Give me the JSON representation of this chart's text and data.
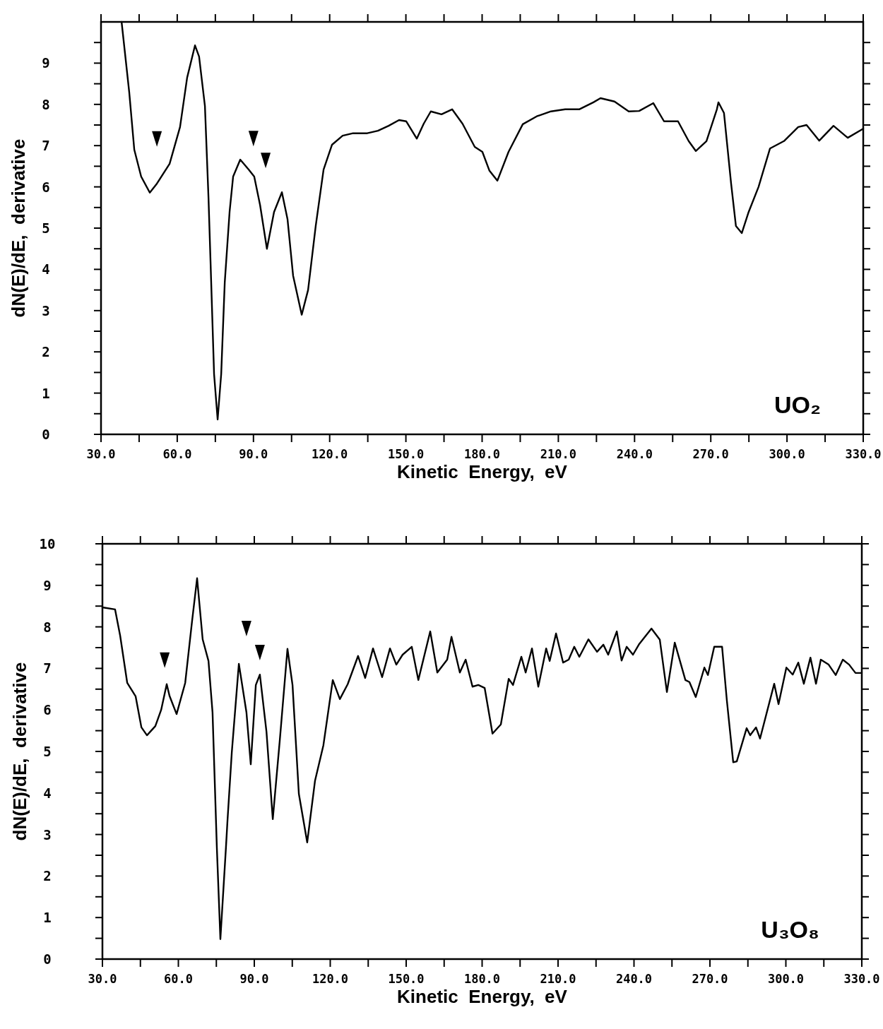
{
  "chart_data": [
    {
      "type": "line",
      "xlabel": "Kinetic  Energy,  eV",
      "ylabel": "dN(E)/dE,  derivative",
      "annotations": [
        "UO₂"
      ],
      "xlim": [
        30,
        330
      ],
      "xticks": [
        {
          "value": 30,
          "label": "30.0"
        },
        {
          "value": 45,
          "label": null
        },
        {
          "value": 60,
          "label": "60.0"
        },
        {
          "value": 75,
          "label": null
        },
        {
          "value": 90,
          "label": "90.0"
        },
        {
          "value": 105,
          "label": null
        },
        {
          "value": 120,
          "label": "120.0"
        },
        {
          "value": 135,
          "label": null
        },
        {
          "value": 150,
          "label": "150.0"
        },
        {
          "value": 165,
          "label": null
        },
        {
          "value": 180,
          "label": "180.0"
        },
        {
          "value": 195,
          "label": null
        },
        {
          "value": 210,
          "label": "210.0"
        },
        {
          "value": 225,
          "label": null
        },
        {
          "value": 240,
          "label": "240.0"
        },
        {
          "value": 255,
          "label": null
        },
        {
          "value": 270,
          "label": "270.0"
        },
        {
          "value": 285,
          "label": null
        },
        {
          "value": 300,
          "label": "300.0"
        },
        {
          "value": 315,
          "label": null
        },
        {
          "value": 330,
          "label": "330.0"
        }
      ],
      "ylim": [
        0,
        10
      ],
      "yticks": [
        0,
        {
          "value": 0.5,
          "label": null
        },
        1,
        {
          "value": 1.5,
          "label": null
        },
        2,
        {
          "value": 2.5,
          "label": null
        },
        3,
        {
          "value": 3.5,
          "label": null
        },
        4,
        {
          "value": 4.5,
          "label": null
        },
        5,
        {
          "value": 5.5,
          "label": null
        },
        6,
        {
          "value": 6.5,
          "label": null
        },
        7,
        {
          "value": 7.5,
          "label": null
        },
        8,
        {
          "value": 8.5,
          "label": null
        },
        9,
        {
          "value": 9.5,
          "label": null
        }
      ],
      "series": [
        {
          "color": "#000000",
          "x": [
            38.1,
            41.1,
            43.1,
            45.8,
            49.2,
            52.0,
            57.0,
            61.1,
            63.9,
            67.0,
            68.6,
            70.9,
            72.3,
            73.1,
            74.5,
            75.9,
            77.3,
            78.7,
            80.6,
            82.0,
            84.8,
            88.1,
            90.3,
            92.6,
            95.3,
            98.1,
            101.2,
            103.4,
            105.6,
            109.0,
            111.5,
            114.5,
            117.6,
            120.9,
            125.1,
            129.2,
            134.8,
            139.0,
            143.2,
            147.3,
            150.1,
            154.3,
            157.0,
            159.8,
            164.0,
            168.2,
            172.3,
            177.1,
            180.1,
            182.9,
            186.0,
            190.4,
            196.0,
            201.5,
            207.1,
            212.7,
            218.2,
            223.8,
            226.6,
            232.1,
            237.7,
            241.8,
            247.4,
            251.6,
            257.1,
            261.3,
            264.1,
            268.3,
            272.4,
            273.0,
            275.2,
            278.0,
            279.9,
            282.2,
            284.9,
            288.8,
            293.3,
            298.8,
            304.4,
            307.7,
            312.7,
            318.3,
            323.9,
            330
          ],
          "values": [
            10.0,
            8.3,
            6.9,
            6.25,
            5.86,
            6.08,
            6.56,
            7.45,
            8.65,
            9.43,
            9.16,
            7.96,
            5.74,
            4.2,
            1.46,
            0.36,
            1.46,
            3.68,
            5.39,
            6.25,
            6.66,
            6.42,
            6.25,
            5.56,
            4.5,
            5.39,
            5.87,
            5.22,
            3.85,
            2.9,
            3.5,
            5.05,
            6.42,
            7.02,
            7.24,
            7.3,
            7.3,
            7.36,
            7.48,
            7.62,
            7.59,
            7.17,
            7.53,
            7.83,
            7.76,
            7.88,
            7.53,
            6.97,
            6.85,
            6.39,
            6.15,
            6.85,
            7.52,
            7.71,
            7.83,
            7.88,
            7.88,
            8.05,
            8.15,
            8.07,
            7.83,
            7.84,
            8.03,
            7.59,
            7.59,
            7.11,
            6.87,
            7.11,
            7.88,
            8.05,
            7.79,
            6.08,
            5.05,
            4.88,
            5.39,
            6.0,
            6.93,
            7.11,
            7.45,
            7.5,
            7.12,
            7.48,
            7.19,
            7.41
          ]
        },
        {
          "type": "scatter",
          "color": "#000000",
          "marker": "triangle",
          "x": [
            52.0,
            90.0,
            94.8
          ],
          "values": [
            7.16,
            7.17,
            6.64
          ]
        }
      ]
    },
    {
      "type": "line",
      "xlabel": "Kinetic  Energy,  eV",
      "ylabel": "dN(E)/dE,  derivative",
      "annotations": [
        "U₃O₈"
      ],
      "xlim": [
        30,
        330
      ],
      "xticks": [
        {
          "value": 30,
          "label": "30.0"
        },
        {
          "value": 45,
          "label": null
        },
        {
          "value": 60,
          "label": "60.0"
        },
        {
          "value": 75,
          "label": null
        },
        {
          "value": 90,
          "label": "90.0"
        },
        {
          "value": 105,
          "label": null
        },
        {
          "value": 120,
          "label": "120.0"
        },
        {
          "value": 135,
          "label": null
        },
        {
          "value": 150,
          "label": "150.0"
        },
        {
          "value": 165,
          "label": null
        },
        {
          "value": 180,
          "label": "180.0"
        },
        {
          "value": 195,
          "label": null
        },
        {
          "value": 210,
          "label": "210.0"
        },
        {
          "value": 225,
          "label": null
        },
        {
          "value": 240,
          "label": "240.0"
        },
        {
          "value": 255,
          "label": null
        },
        {
          "value": 270,
          "label": "270.0"
        },
        {
          "value": 285,
          "label": null
        },
        {
          "value": 300,
          "label": "300.0"
        },
        {
          "value": 315,
          "label": null
        },
        {
          "value": 330,
          "label": "330.0"
        }
      ],
      "ylim": [
        0,
        10
      ],
      "yticks": [
        0,
        {
          "value": 0.5,
          "label": null
        },
        1,
        {
          "value": 1.5,
          "label": null
        },
        2,
        {
          "value": 2.5,
          "label": null
        },
        3,
        {
          "value": 3.5,
          "label": null
        },
        4,
        {
          "value": 4.5,
          "label": null
        },
        5,
        {
          "value": 5.5,
          "label": null
        },
        6,
        {
          "value": 6.5,
          "label": null
        },
        7,
        {
          "value": 7.5,
          "label": null
        },
        8,
        {
          "value": 8.5,
          "label": null
        },
        9,
        {
          "value": 9.5,
          "label": null
        },
        10
      ],
      "series": [
        {
          "color": "#000000",
          "x": [
            30.0,
            35.0,
            37.0,
            39.8,
            43.1,
            45.4,
            47.6,
            50.9,
            53.2,
            55.4,
            56.5,
            59.3,
            62.7,
            65.4,
            67.4,
            69.6,
            71.9,
            73.5,
            75.2,
            76.6,
            78.8,
            79.4,
            81.1,
            83.9,
            86.9,
            88.6,
            90.6,
            92.2,
            94.8,
            97.3,
            100.1,
            103.1,
            105.1,
            107.6,
            110.9,
            114.0,
            117.3,
            121.0,
            123.8,
            126.9,
            131.0,
            133.8,
            136.9,
            140.5,
            143.6,
            146.1,
            148.6,
            152.2,
            154.8,
            159.5,
            162.3,
            166.2,
            167.9,
            171.2,
            173.5,
            176.2,
            178.5,
            181.0,
            184.1,
            187.4,
            190.5,
            192.2,
            195.5,
            197.2,
            199.7,
            202.2,
            205.3,
            206.7,
            209.2,
            212.0,
            214.2,
            216.4,
            218.4,
            222.0,
            225.4,
            227.9,
            229.8,
            233.2,
            235.1,
            237.1,
            239.6,
            242.1,
            246.9,
            250.2,
            253.0,
            256.1,
            260.3,
            261.9,
            264.4,
            267.8,
            269.2,
            271.7,
            274.8,
            276.7,
            279.2,
            280.6,
            284.5,
            285.9,
            288.2,
            289.8,
            295.4,
            297.1,
            300.2,
            302.7,
            304.9,
            307.1,
            309.7,
            311.9,
            313.8,
            316.9,
            319.7,
            322.5,
            325.0,
            327.5,
            330
          ],
          "values": [
            8.47,
            8.42,
            7.79,
            6.65,
            6.33,
            5.58,
            5.39,
            5.61,
            6.0,
            6.62,
            6.34,
            5.9,
            6.65,
            8.13,
            9.17,
            7.7,
            7.18,
            5.94,
            2.69,
            0.48,
            2.69,
            3.33,
            4.97,
            7.11,
            5.94,
            4.69,
            6.6,
            6.85,
            5.48,
            3.37,
            5.29,
            7.47,
            6.6,
            3.98,
            2.81,
            4.3,
            5.15,
            6.72,
            6.26,
            6.62,
            7.3,
            6.77,
            7.48,
            6.79,
            7.48,
            7.09,
            7.33,
            7.52,
            6.72,
            7.89,
            6.9,
            7.21,
            7.76,
            6.9,
            7.21,
            6.56,
            6.6,
            6.53,
            5.43,
            5.65,
            6.75,
            6.6,
            7.28,
            6.9,
            7.48,
            6.56,
            7.48,
            7.18,
            7.84,
            7.14,
            7.21,
            7.52,
            7.28,
            7.7,
            7.4,
            7.57,
            7.33,
            7.89,
            7.19,
            7.52,
            7.33,
            7.59,
            7.96,
            7.69,
            6.43,
            7.62,
            6.72,
            6.67,
            6.31,
            7.02,
            6.84,
            7.52,
            7.52,
            6.22,
            4.74,
            4.76,
            5.56,
            5.39,
            5.58,
            5.31,
            6.63,
            6.14,
            7.02,
            6.85,
            7.14,
            6.63,
            7.26,
            6.63,
            7.21,
            7.09,
            6.84,
            7.21,
            7.09,
            6.89,
            6.89
          ]
        },
        {
          "type": "scatter",
          "color": "#000000",
          "marker": "triangle",
          "x": [
            54.6,
            86.9,
            92.2
          ],
          "values": [
            7.2,
            7.96,
            7.38
          ]
        }
      ]
    }
  ]
}
